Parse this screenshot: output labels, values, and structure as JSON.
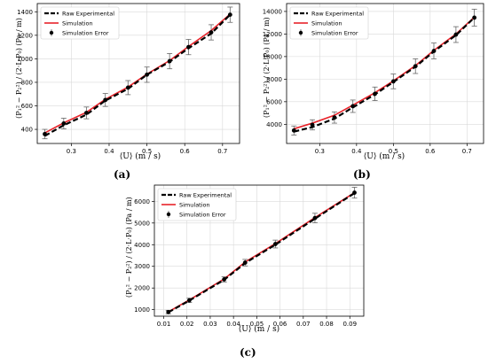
{
  "panels": [
    {
      "caption": "(a)",
      "ylabel": "(P₁² − P₂²) / (2·L·P₀)  (Pa / m)",
      "xlabel": "⟨U⟩  (m / s)",
      "legend": [
        "Raw Experimental",
        "Simulation",
        "Simulation Error"
      ]
    },
    {
      "caption": "(b)",
      "ylabel": "(P₁² − P₂²) / (2·L·P₀)  (Pa / m)",
      "xlabel": "⟨U⟩  (m / s)",
      "legend": [
        "Raw Experimental",
        "Simulation",
        "Simulation Error"
      ]
    },
    {
      "caption": "(c)",
      "ylabel": "(P₁² − P₂²) / (2·L·P₀)  (Pa / m)",
      "xlabel": "⟨U⟩  (m / s)",
      "legend": [
        "Raw Experimental",
        "Simulation",
        "Simulation Error"
      ]
    }
  ],
  "colors": {
    "experimental": "#000000",
    "simulation": "#e8232a",
    "error": "#000000",
    "errorbar": "#666666"
  },
  "chart_data": [
    {
      "type": "line",
      "xlim": [
        0.21,
        0.745
      ],
      "ylim": [
        280,
        1470
      ],
      "xticks": [
        0.3,
        0.4,
        0.5,
        0.6,
        0.7
      ],
      "xtick_labels": [
        "0.3",
        "0.4",
        "0.5",
        "0.6",
        "0.7"
      ],
      "yticks": [
        400,
        600,
        800,
        1000,
        1200,
        1400
      ],
      "ytick_labels": [
        "400",
        "600",
        "800",
        "1000",
        "1200",
        "1400"
      ],
      "x": [
        0.23,
        0.28,
        0.34,
        0.39,
        0.45,
        0.5,
        0.56,
        0.61,
        0.67,
        0.72
      ],
      "series": [
        {
          "name": "Raw Experimental",
          "values": [
            345,
            435,
            525,
            645,
            745,
            865,
            975,
            1090,
            1215,
            1375
          ]
        },
        {
          "name": "Simulation",
          "values": [
            370,
            455,
            545,
            655,
            760,
            870,
            985,
            1105,
            1240,
            1380
          ]
        },
        {
          "name": "Simulation Error",
          "values": [
            360,
            450,
            540,
            650,
            755,
            865,
            980,
            1100,
            1225,
            1375
          ],
          "error": [
            40,
            45,
            50,
            55,
            60,
            65,
            65,
            65,
            65,
            65
          ]
        }
      ],
      "grid": true,
      "legend_position": "top-left"
    },
    {
      "type": "line",
      "xlim": [
        0.21,
        0.745
      ],
      "ylim": [
        2300,
        14700
      ],
      "xticks": [
        0.3,
        0.4,
        0.5,
        0.6,
        0.7
      ],
      "xtick_labels": [
        "0.3",
        "0.4",
        "0.5",
        "0.6",
        "0.7"
      ],
      "yticks": [
        4000,
        6000,
        8000,
        10000,
        12000,
        14000
      ],
      "ytick_labels": [
        "4000",
        "6000",
        "8000",
        "10000",
        "12000",
        "14000"
      ],
      "x": [
        0.23,
        0.28,
        0.34,
        0.39,
        0.45,
        0.5,
        0.56,
        0.61,
        0.67,
        0.72
      ],
      "series": [
        {
          "name": "Raw Experimental",
          "values": [
            3350,
            3750,
            4500,
            5500,
            6650,
            7750,
            9100,
            10450,
            11900,
            13450
          ]
        },
        {
          "name": "Simulation",
          "values": [
            3600,
            4100,
            4800,
            5700,
            6800,
            7850,
            9200,
            10550,
            12000,
            13500
          ]
        },
        {
          "name": "Simulation Error",
          "values": [
            3450,
            3950,
            4600,
            5600,
            6700,
            7800,
            9150,
            10500,
            11950,
            13450
          ],
          "error": [
            400,
            450,
            500,
            550,
            600,
            650,
            650,
            700,
            700,
            750
          ]
        }
      ],
      "grid": true,
      "legend_position": "top-left"
    },
    {
      "type": "line",
      "xlim": [
        0.006,
        0.096
      ],
      "ylim": [
        700,
        6750
      ],
      "xticks": [
        0.01,
        0.02,
        0.03,
        0.04,
        0.05,
        0.06,
        0.07,
        0.08,
        0.09
      ],
      "xtick_labels": [
        "0.01",
        "0.02",
        "0.03",
        "0.04",
        "0.05",
        "0.06",
        "0.07",
        "0.08",
        "0.09"
      ],
      "yticks": [
        1000,
        2000,
        3000,
        4000,
        5000,
        6000
      ],
      "ytick_labels": [
        "1000",
        "2000",
        "3000",
        "4000",
        "5000",
        "6000"
      ],
      "x": [
        0.012,
        0.021,
        0.036,
        0.045,
        0.058,
        0.075,
        0.092
      ],
      "series": [
        {
          "name": "Raw Experimental",
          "values": [
            880,
            1420,
            2380,
            3150,
            4000,
            5200,
            6380
          ]
        },
        {
          "name": "Simulation",
          "values": [
            900,
            1450,
            2420,
            3200,
            4050,
            5250,
            6400
          ]
        },
        {
          "name": "Simulation Error",
          "values": [
            890,
            1430,
            2400,
            3170,
            4030,
            5230,
            6400
          ],
          "error": [
            80,
            100,
            120,
            150,
            180,
            220,
            250
          ]
        }
      ],
      "grid": true,
      "legend_position": "top-left"
    }
  ]
}
